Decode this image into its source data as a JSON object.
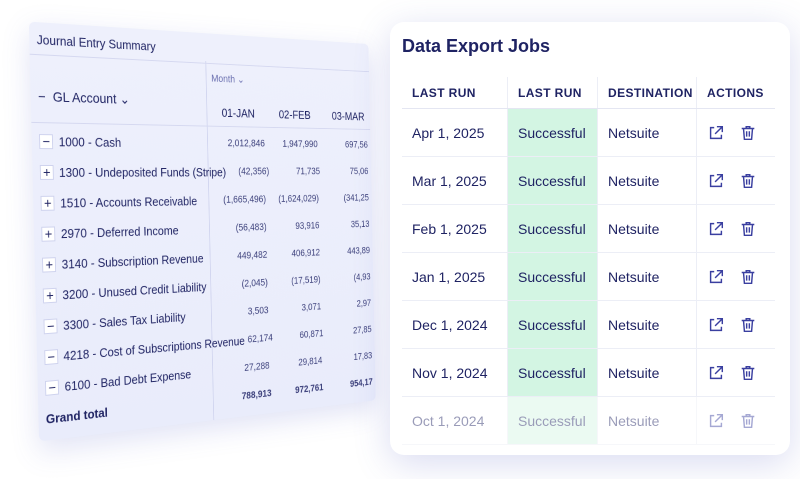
{
  "journal": {
    "title": "Journal Entry Summary",
    "column_group": "Month",
    "row_header": "GL Account",
    "columns": [
      "01-JAN",
      "02-FEB",
      "03-MAR"
    ],
    "rows": [
      {
        "toggle": "−",
        "label": "1000 - Cash",
        "values": [
          "2,012,846",
          "1,947,990",
          "697,56"
        ]
      },
      {
        "toggle": "+",
        "label": "1300 - Undeposited Funds (Stripe)",
        "values": [
          "(42,356)",
          "71,735",
          "75,06"
        ]
      },
      {
        "toggle": "+",
        "label": "1510 - Accounts Receivable",
        "values": [
          "(1,665,496)",
          "(1,624,029)",
          "(341,25"
        ]
      },
      {
        "toggle": "+",
        "label": "2970 - Deferred Income",
        "values": [
          "(56,483)",
          "93,916",
          "35,13"
        ]
      },
      {
        "toggle": "+",
        "label": "3140 - Subscription Revenue",
        "values": [
          "449,482",
          "406,912",
          "443,89"
        ]
      },
      {
        "toggle": "+",
        "label": "3200 - Unused Credit Liability",
        "values": [
          "(2,045)",
          "(17,519)",
          "(4,93"
        ]
      },
      {
        "toggle": "−",
        "label": "3300 - Sales Tax Liability",
        "values": [
          "3,503",
          "3,071",
          "2,97"
        ]
      },
      {
        "toggle": "−",
        "label": "4218 - Cost of Subscriptions Revenue",
        "values": [
          "62,174",
          "60,871",
          "27,85"
        ]
      },
      {
        "toggle": "−",
        "label": "6100 - Bad Debt Expense",
        "values": [
          "27,288",
          "29,814",
          "17,83"
        ]
      }
    ],
    "footer": {
      "label": "Grand total",
      "values": [
        "788,913",
        "972,761",
        "954,17"
      ]
    }
  },
  "exports": {
    "title": "Data Export Jobs",
    "headers": [
      "LAST RUN",
      "LAST RUN",
      "DESTINATION",
      "ACTIONS"
    ],
    "rows": [
      [
        "Apr 1, 2025",
        "Successful",
        "Netsuite"
      ],
      [
        "Mar 1, 2025",
        "Successful",
        "Netsuite"
      ],
      [
        "Feb 1, 2025",
        "Successful",
        "Netsuite"
      ],
      [
        "Jan 1, 2025",
        "Successful",
        "Netsuite"
      ],
      [
        "Dec 1, 2024",
        "Successful",
        "Netsuite"
      ],
      [
        "Nov 1, 2024",
        "Successful",
        "Netsuite"
      ],
      [
        "Oct 1, 2024",
        "Successful",
        "Netsuite"
      ]
    ]
  }
}
